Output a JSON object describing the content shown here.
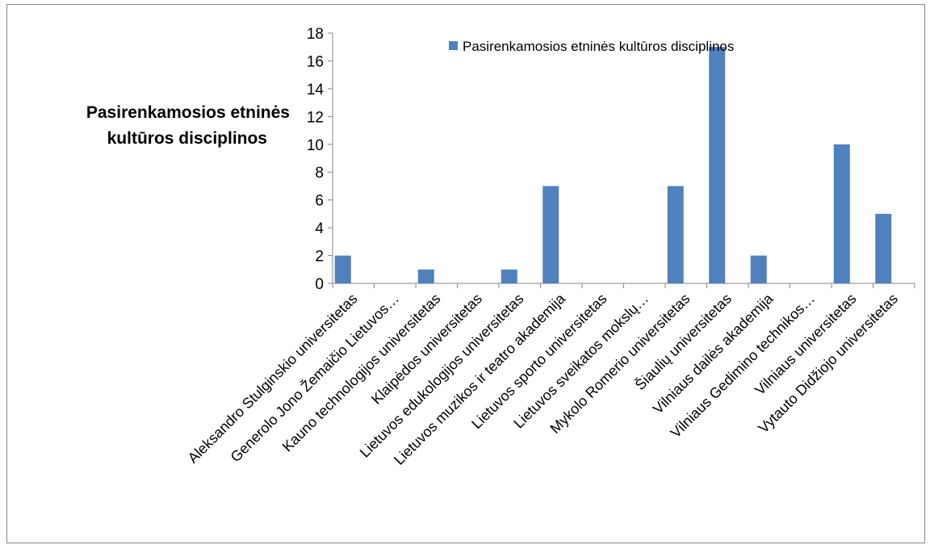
{
  "chart_data": {
    "type": "bar",
    "title": "Pasirenkamosios etninės kultūros disciplinos",
    "xlabel": "",
    "ylabel": "",
    "ylim": [
      0,
      18
    ],
    "yticks": [
      0,
      2,
      4,
      6,
      8,
      10,
      12,
      14,
      16,
      18
    ],
    "grid": false,
    "legend_position": "top",
    "categories": [
      "Aleksandro Stulginskio universitetas",
      "Generolo Jono Žemaičio Lietuvos…",
      "Kauno technologijos universitetas",
      "Klaipėdos universitetas",
      "Lietuvos edukologijos universitetas",
      "Lietuvos muzikos ir teatro akademija",
      "Lietuvos sporto universitetas",
      "Lietuvos sveikatos mokslų…",
      "Mykolo Romerio universitetas",
      "Šiaulių universitetas",
      "Vilniaus dailės akademija",
      "Vilniaus Gedimino technikos…",
      "Vilniaus universitetas",
      "Vytauto Didžiojo universitetas"
    ],
    "series": [
      {
        "name": "Pasirenkamosios etninės kultūros disciplinos",
        "color": "#4f81bd",
        "values": [
          2,
          0,
          1,
          0,
          1,
          7,
          0,
          0,
          7,
          17,
          2,
          0,
          10,
          5
        ]
      }
    ]
  }
}
